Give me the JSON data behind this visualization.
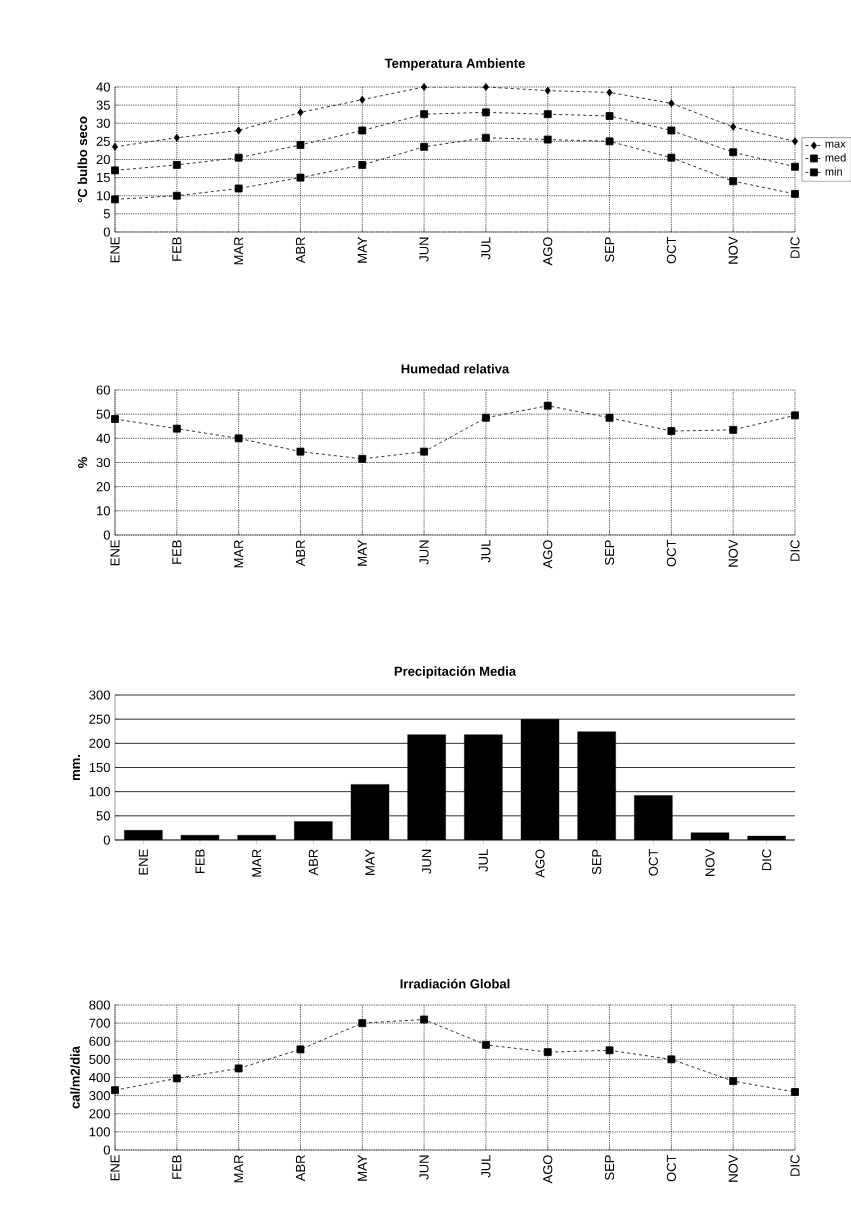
{
  "chart_data": [
    {
      "type": "line",
      "title": "Temperatura Ambiente",
      "ylabel": "°C bulbo seco",
      "categories": [
        "ENE",
        "FEB",
        "MAR",
        "ABR",
        "MAY",
        "JUN",
        "JUL",
        "AGO",
        "SEP",
        "OCT",
        "NOV",
        "DIC"
      ],
      "series": [
        {
          "name": "max",
          "color": "#000000",
          "marker": "diamond",
          "values": [
            23.5,
            26,
            28,
            33,
            36.5,
            40,
            40,
            39,
            38.5,
            35.5,
            29,
            25
          ]
        },
        {
          "name": "med",
          "color": "#000000",
          "marker": "square",
          "values": [
            17,
            18.5,
            20.5,
            24,
            28,
            32.5,
            33,
            32.5,
            32,
            28,
            22,
            18
          ]
        },
        {
          "name": "min",
          "color": "#000000",
          "marker": "square",
          "values": [
            9,
            10,
            12,
            15,
            18.5,
            23.5,
            26,
            25.5,
            25,
            20.5,
            14,
            10.5
          ]
        }
      ],
      "ylim": [
        0,
        40
      ],
      "yticks": [
        0,
        5,
        10,
        15,
        20,
        25,
        30,
        35,
        40
      ],
      "grid": true,
      "legend": "right",
      "line_style": "dashed"
    },
    {
      "type": "line",
      "title": "Humedad relativa",
      "ylabel": "%",
      "categories": [
        "ENE",
        "FEB",
        "MAR",
        "ABR",
        "MAY",
        "JUN",
        "JUL",
        "AGO",
        "SEP",
        "OCT",
        "NOV",
        "DIC"
      ],
      "series": [
        {
          "color": "#000000",
          "values": [
            48,
            44,
            40,
            34.5,
            31.5,
            34.5,
            48.5,
            53.5,
            48.5,
            43,
            43.5,
            49.5
          ]
        }
      ],
      "ylim": [
        0,
        60
      ],
      "yticks": [
        0,
        10,
        20,
        30,
        40,
        50,
        60
      ],
      "grid": true,
      "marker": "square",
      "line_style": "dashed"
    },
    {
      "type": "bar",
      "title": "Precipitación Media",
      "ylabel": "mm.",
      "categories": [
        "ENE",
        "FEB",
        "MAR",
        "ABR",
        "MAY",
        "JUN",
        "JUL",
        "AGO",
        "SEP",
        "OCT",
        "NOV",
        "DIC"
      ],
      "values": [
        20,
        10,
        10,
        38,
        115,
        218,
        218,
        250,
        224,
        92,
        15,
        8
      ],
      "color": "#000000",
      "ylim": [
        0,
        300
      ],
      "yticks": [
        0,
        50,
        100,
        150,
        200,
        250,
        300
      ],
      "grid": "y"
    },
    {
      "type": "line",
      "title": "Irradiación Global",
      "ylabel": "cal/m2/dia",
      "categories": [
        "ENE",
        "FEB",
        "MAR",
        "ABR",
        "MAY",
        "JUN",
        "JUL",
        "AGO",
        "SEP",
        "OCT",
        "NOV",
        "DIC"
      ],
      "series": [
        {
          "color": "#000000",
          "values": [
            330,
            395,
            450,
            555,
            700,
            720,
            580,
            540,
            550,
            500,
            380,
            320
          ]
        }
      ],
      "ylim": [
        0,
        800
      ],
      "yticks": [
        0,
        100,
        200,
        300,
        400,
        500,
        600,
        700,
        800
      ],
      "grid": true,
      "marker": "square",
      "line_style": "dashed"
    }
  ]
}
